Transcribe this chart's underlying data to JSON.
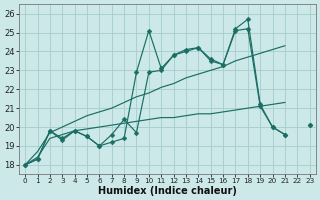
{
  "xlabel": "Humidex (Indice chaleur)",
  "x": [
    0,
    1,
    2,
    3,
    4,
    5,
    6,
    7,
    8,
    9,
    10,
    11,
    12,
    13,
    14,
    15,
    16,
    17,
    18,
    19,
    20,
    21,
    22,
    23
  ],
  "line_jagged1": [
    18.0,
    18.3,
    19.8,
    19.3,
    19.8,
    19.5,
    19.0,
    19.2,
    19.4,
    22.9,
    25.1,
    23.1,
    23.8,
    24.1,
    24.2,
    23.6,
    23.3,
    25.2,
    25.7,
    21.2,
    20.0,
    19.6,
    null,
    20.1
  ],
  "line_jagged2": [
    18.0,
    18.3,
    19.8,
    19.4,
    19.8,
    19.5,
    19.0,
    19.6,
    20.4,
    19.7,
    22.9,
    23.0,
    23.8,
    24.0,
    24.2,
    23.5,
    23.3,
    25.1,
    25.2,
    21.1,
    20.0,
    19.6,
    null,
    20.1
  ],
  "line_trend1": [
    18.0,
    18.7,
    19.7,
    20.0,
    20.3,
    20.6,
    20.8,
    21.0,
    21.3,
    21.6,
    21.8,
    22.1,
    22.3,
    22.6,
    22.8,
    23.0,
    23.2,
    23.5,
    23.7,
    23.9,
    24.1,
    24.3,
    null,
    null
  ],
  "line_trend2": [
    18.0,
    18.4,
    19.4,
    19.6,
    19.8,
    19.9,
    20.0,
    20.1,
    20.2,
    20.3,
    20.4,
    20.5,
    20.5,
    20.6,
    20.7,
    20.7,
    20.8,
    20.9,
    21.0,
    21.1,
    21.2,
    21.3,
    null,
    null
  ],
  "bg_color": "#cce8e8",
  "line_color": "#1a6e64",
  "grid_color": "#aad0d0",
  "ylim": [
    17.5,
    26.5
  ],
  "yticks": [
    18,
    19,
    20,
    21,
    22,
    23,
    24,
    25,
    26
  ],
  "xlim": [
    -0.5,
    23.5
  ]
}
